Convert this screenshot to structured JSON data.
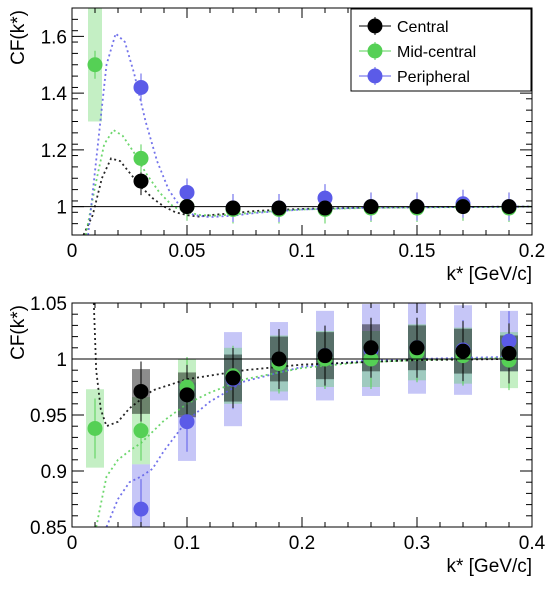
{
  "chart_data": [
    {
      "type": "scatter",
      "title": "",
      "xlabel": "k* [GeV/c]",
      "ylabel": "CF(k*)",
      "xlim": [
        0,
        0.2
      ],
      "ylim": [
        0.9,
        1.7
      ],
      "x_ticks": [
        0,
        0.05,
        0.1,
        0.15,
        0.2
      ],
      "x_tick_labels": [
        "0",
        "0.05",
        "0.1",
        "0.15",
        "0.2"
      ],
      "y_ticks": [
        1,
        1.2,
        1.4,
        1.6
      ],
      "y_tick_labels": [
        "1",
        "1.2",
        "1.4",
        "1.6"
      ],
      "reference_line": 1,
      "legend": {
        "placement": "top-right",
        "entries": [
          "Central",
          "Mid-central",
          "Peripheral"
        ]
      },
      "series": [
        {
          "name": "Central",
          "color": "#000000",
          "x": [
            0.03,
            0.05,
            0.07,
            0.09,
            0.11,
            0.13,
            0.15,
            0.17,
            0.19
          ],
          "y": [
            1.09,
            1.0,
            0.995,
            0.995,
            0.995,
            1.0,
            1.0,
            1.0,
            1.0
          ],
          "syst": [
            0.01,
            0.01,
            0.01,
            0.01,
            0.01,
            0.01,
            0.01,
            0.01,
            0.01
          ],
          "fit": [
            [
              0.005,
              0.9
            ],
            [
              0.009,
              0.97
            ],
            [
              0.013,
              1.1
            ],
            [
              0.017,
              1.17
            ],
            [
              0.021,
              1.16
            ],
            [
              0.025,
              1.12
            ],
            [
              0.03,
              1.07
            ],
            [
              0.035,
              1.03
            ],
            [
              0.04,
              1.0
            ],
            [
              0.045,
              0.98
            ],
            [
              0.05,
              0.97
            ],
            [
              0.055,
              0.965
            ],
            [
              0.06,
              0.97
            ],
            [
              0.07,
              0.977
            ],
            [
              0.08,
              0.985
            ],
            [
              0.1,
              0.992
            ],
            [
              0.13,
              0.997
            ],
            [
              0.2,
              1.0
            ]
          ]
        },
        {
          "name": "Mid-central",
          "color": "#55d055",
          "x": [
            0.01,
            0.03,
            0.05,
            0.07,
            0.09,
            0.11,
            0.13,
            0.15,
            0.17,
            0.19
          ],
          "y": [
            1.5,
            1.17,
            1.0,
            0.99,
            0.99,
            0.99,
            0.995,
            0.995,
            1.0,
            0.995
          ],
          "syst": [
            0.2,
            0.01,
            0.01,
            0.01,
            0.01,
            0.01,
            0.01,
            0.01,
            0.01,
            0.01
          ],
          "fit": [
            [
              0.006,
              0.9
            ],
            [
              0.01,
              1.07
            ],
            [
              0.014,
              1.22
            ],
            [
              0.018,
              1.27
            ],
            [
              0.022,
              1.25
            ],
            [
              0.027,
              1.19
            ],
            [
              0.032,
              1.12
            ],
            [
              0.038,
              1.05
            ],
            [
              0.044,
              1.0
            ],
            [
              0.05,
              0.98
            ],
            [
              0.056,
              0.97
            ],
            [
              0.062,
              0.968
            ],
            [
              0.07,
              0.972
            ],
            [
              0.08,
              0.98
            ],
            [
              0.1,
              0.99
            ],
            [
              0.13,
              0.996
            ],
            [
              0.2,
              1.0
            ]
          ]
        },
        {
          "name": "Peripheral",
          "color": "#5b5be8",
          "x": [
            0.03,
            0.05,
            0.07,
            0.09,
            0.11,
            0.13,
            0.15,
            0.17,
            0.19
          ],
          "y": [
            1.42,
            1.05,
            0.995,
            0.995,
            1.03,
            1.0,
            1.0,
            1.01,
            1.0
          ],
          "syst": [
            0.01,
            0.01,
            0.01,
            0.01,
            0.01,
            0.01,
            0.01,
            0.01,
            0.01
          ],
          "fit": [
            [
              0.007,
              0.9
            ],
            [
              0.011,
              1.2
            ],
            [
              0.015,
              1.5
            ],
            [
              0.019,
              1.61
            ],
            [
              0.023,
              1.58
            ],
            [
              0.027,
              1.47
            ],
            [
              0.032,
              1.3
            ],
            [
              0.037,
              1.16
            ],
            [
              0.042,
              1.06
            ],
            [
              0.047,
              1.0
            ],
            [
              0.053,
              0.97
            ],
            [
              0.06,
              0.963
            ],
            [
              0.07,
              0.968
            ],
            [
              0.08,
              0.978
            ],
            [
              0.1,
              0.99
            ],
            [
              0.13,
              0.997
            ],
            [
              0.2,
              1.0
            ]
          ]
        }
      ]
    },
    {
      "type": "scatter",
      "title": "",
      "xlabel": "k* [GeV/c]",
      "ylabel": "CF(k*)",
      "xlim": [
        0,
        0.4
      ],
      "ylim": [
        0.85,
        1.05
      ],
      "x_ticks": [
        0,
        0.1,
        0.2,
        0.3,
        0.4
      ],
      "x_tick_labels": [
        "0",
        "0.1",
        "0.2",
        "0.3",
        "0.4"
      ],
      "y_ticks": [
        0.85,
        0.9,
        0.95,
        1,
        1.05
      ],
      "y_tick_labels": [
        "0.85",
        "0.9",
        "0.95",
        "1",
        "1.05"
      ],
      "reference_line": 1,
      "series": [
        {
          "name": "Peripheral",
          "color": "#5b5be8",
          "x": [
            0.06,
            0.1,
            0.14,
            0.18,
            0.22,
            0.26,
            0.3,
            0.34,
            0.38
          ],
          "y": [
            0.866,
            0.944,
            0.982,
            0.998,
            1.003,
            1.008,
            1.01,
            1.008,
            1.016
          ],
          "syst": [
            0.04,
            0.035,
            0.042,
            0.035,
            0.04,
            0.041,
            0.041,
            0.04,
            0.027
          ],
          "fit": [
            [
              0.03,
              0.85
            ],
            [
              0.04,
              0.875
            ],
            [
              0.05,
              0.89
            ],
            [
              0.06,
              0.895
            ],
            [
              0.07,
              0.902
            ],
            [
              0.08,
              0.918
            ],
            [
              0.1,
              0.945
            ],
            [
              0.12,
              0.962
            ],
            [
              0.15,
              0.98
            ],
            [
              0.2,
              0.993
            ],
            [
              0.25,
              0.998
            ],
            [
              0.3,
              1.0
            ],
            [
              0.38,
              1.002
            ]
          ]
        },
        {
          "name": "Mid-central",
          "color": "#55d055",
          "x": [
            0.02,
            0.06,
            0.1,
            0.14,
            0.18,
            0.22,
            0.26,
            0.3,
            0.34,
            0.38
          ],
          "y": [
            0.938,
            0.936,
            0.975,
            0.985,
            0.996,
            1.0,
            1.0,
            1.006,
            1.003,
            0.999
          ],
          "syst": [
            0.035,
            0.03,
            0.025,
            0.025,
            0.025,
            0.025,
            0.025,
            0.025,
            0.025,
            0.025
          ],
          "fit": [
            [
              0.021,
              0.85
            ],
            [
              0.03,
              0.895
            ],
            [
              0.04,
              0.91
            ],
            [
              0.05,
              0.918
            ],
            [
              0.06,
              0.925
            ],
            [
              0.08,
              0.945
            ],
            [
              0.1,
              0.96
            ],
            [
              0.12,
              0.97
            ],
            [
              0.15,
              0.982
            ],
            [
              0.2,
              0.992
            ],
            [
              0.25,
              0.997
            ],
            [
              0.3,
              0.999
            ],
            [
              0.38,
              1.001
            ]
          ]
        },
        {
          "name": "Central",
          "color": "#000000",
          "x": [
            0.06,
            0.1,
            0.14,
            0.18,
            0.22,
            0.26,
            0.3,
            0.34,
            0.38
          ],
          "y": [
            0.971,
            0.968,
            0.983,
            1.0,
            1.003,
            1.01,
            1.01,
            1.007,
            1.005
          ],
          "syst": [
            0.02,
            0.02,
            0.021,
            0.02,
            0.021,
            0.021,
            0.02,
            0.02,
            0.016
          ],
          "fit": [
            [
              0.019,
              1.05
            ],
            [
              0.021,
              0.99
            ],
            [
              0.025,
              0.955
            ],
            [
              0.03,
              0.94
            ],
            [
              0.04,
              0.944
            ],
            [
              0.05,
              0.956
            ],
            [
              0.07,
              0.972
            ],
            [
              0.1,
              0.982
            ],
            [
              0.15,
              0.99
            ],
            [
              0.2,
              0.995
            ],
            [
              0.3,
              0.999
            ],
            [
              0.38,
              1.0
            ]
          ]
        }
      ]
    }
  ]
}
